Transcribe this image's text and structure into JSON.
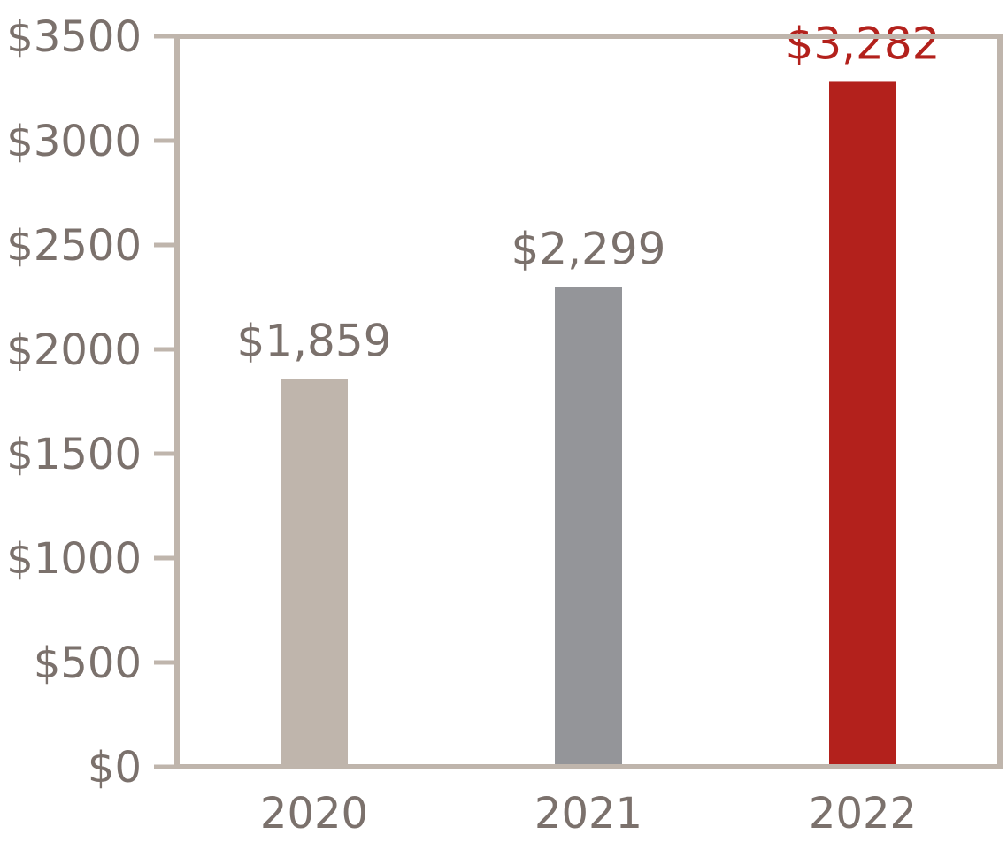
{
  "chart_data": {
    "type": "bar",
    "title": "",
    "xlabel": "",
    "ylabel": "",
    "categories": [
      "2020",
      "2021",
      "2022"
    ],
    "values": [
      1859,
      2299,
      3282
    ],
    "data_labels": [
      "$1,859",
      "$2,299",
      "$3,282"
    ],
    "ylim": [
      0,
      3500
    ],
    "y_ticks": [
      0,
      500,
      1000,
      1500,
      2000,
      2500,
      3000,
      3500
    ],
    "y_tick_labels": [
      "$0",
      "$500",
      "$1000",
      "$1500",
      "$2000",
      "$2500",
      "$3000",
      "$3500"
    ],
    "grid": false,
    "legend": "none",
    "colors": {
      "bars": [
        "#bfb5ac",
        "#949599",
        "#b3211c"
      ],
      "data_labels": [
        "#7b716c",
        "#7b716c",
        "#b3211c"
      ],
      "frame": "#bfb5ac",
      "tick_text": "#7b716c"
    }
  }
}
